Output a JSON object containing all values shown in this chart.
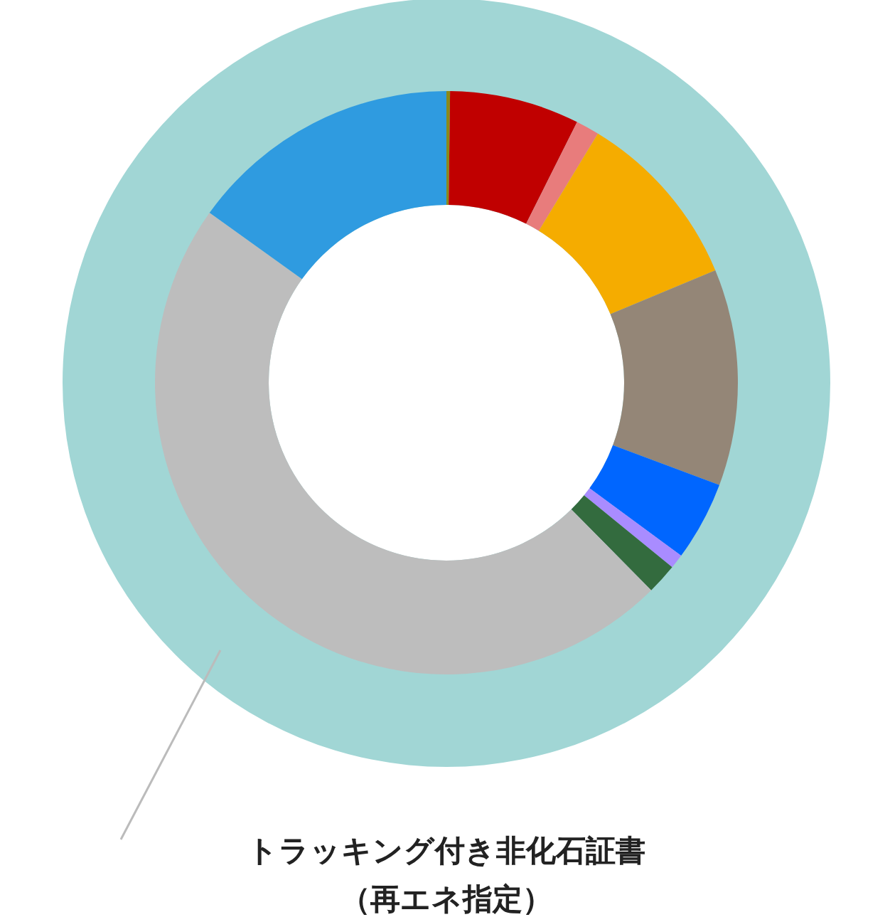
{
  "chart_data": [
    {
      "type": "donut",
      "categories": [
        "トラッキング付き非化石証書（再エネ指定）"
      ],
      "values": [
        100
      ],
      "colors": [
        "#a1d6d5"
      ]
    },
    {
      "type": "donut",
      "categories": [
        null,
        null,
        null,
        null,
        null,
        null,
        null,
        null,
        null,
        null
      ],
      "values": [
        0.2,
        7.2,
        1.3,
        10,
        12,
        4.4,
        0.8,
        1.7,
        47.3,
        15.1
      ],
      "colors": [
        "#8a8a1a",
        "#c00000",
        "#e87c7c",
        "#f5ac00",
        "#948677",
        "#0066ff",
        "#a98cff",
        "#336b3e",
        "#bdbdbd",
        "#2f9be0"
      ]
    }
  ]
}
